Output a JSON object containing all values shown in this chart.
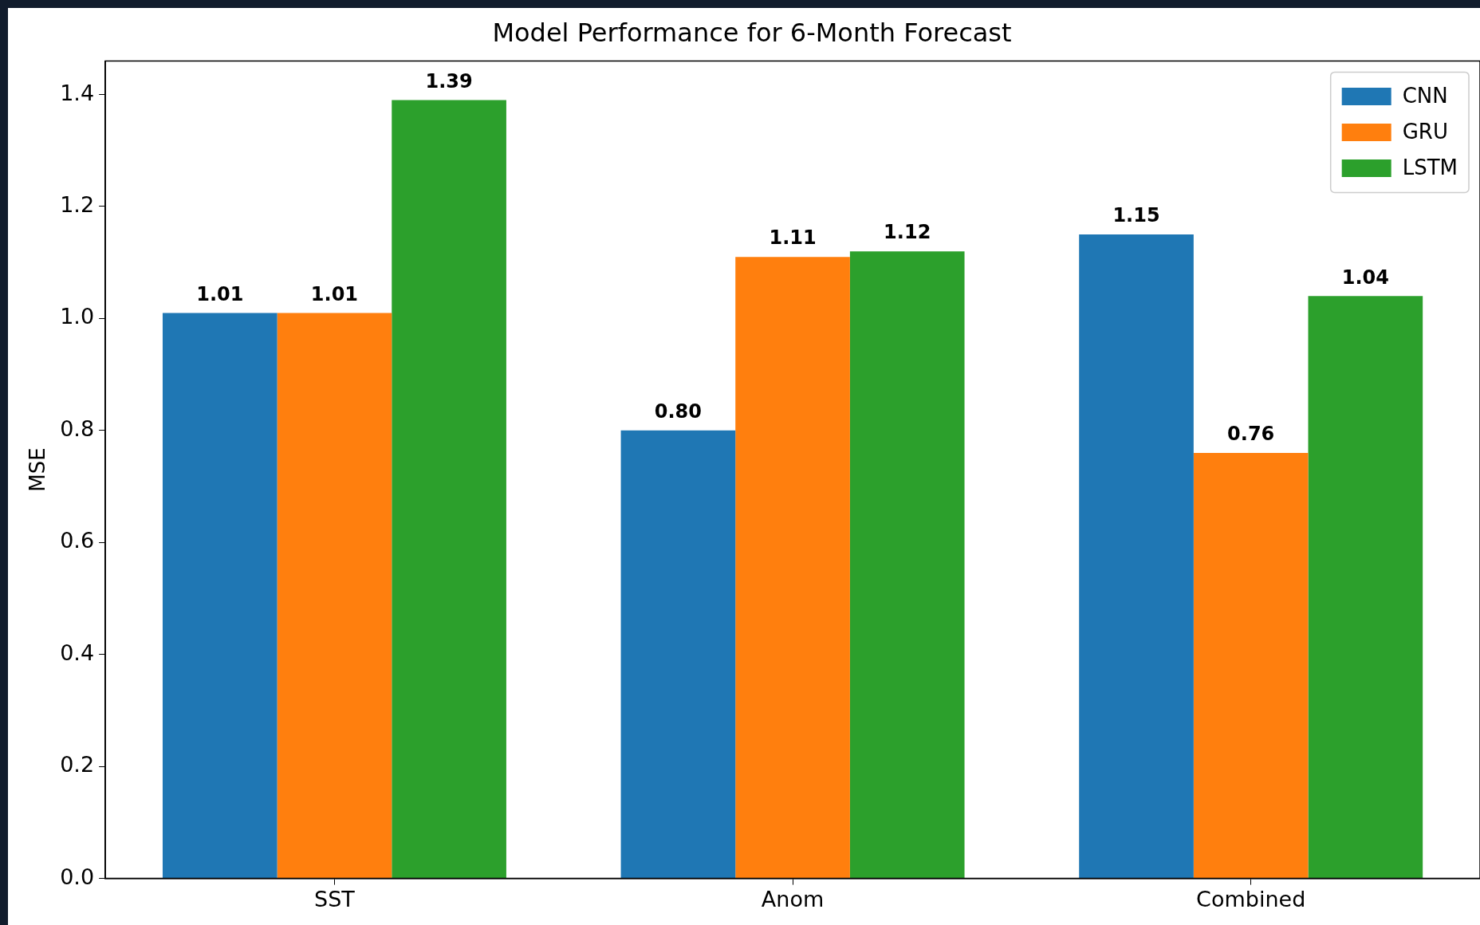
{
  "chart_data": {
    "type": "bar",
    "title": "Model Performance for 6-Month Forecast",
    "ylabel": "MSE",
    "categories": [
      "SST",
      "Anom",
      "Combined"
    ],
    "series": [
      {
        "name": "CNN",
        "color": "#1f77b4",
        "values": [
          1.01,
          0.8,
          1.15
        ],
        "value_labels": [
          "1.01",
          "0.80",
          "1.15"
        ]
      },
      {
        "name": "GRU",
        "color": "#ff7f0e",
        "values": [
          1.01,
          1.11,
          0.76
        ],
        "value_labels": [
          "1.01",
          "1.11",
          "0.76"
        ]
      },
      {
        "name": "LSTM",
        "color": "#2ca02c",
        "values": [
          1.39,
          1.12,
          1.04
        ],
        "value_labels": [
          "1.39",
          "1.12",
          "1.04"
        ]
      }
    ],
    "ylim": [
      0,
      1.46
    ],
    "yticks": [
      {
        "value": 0,
        "label": "0.0"
      },
      {
        "value": 0.2,
        "label": "0.2"
      },
      {
        "value": 0.4,
        "label": "0.4"
      },
      {
        "value": 0.6,
        "label": "0.6"
      },
      {
        "value": 0.8,
        "label": "0.8"
      },
      {
        "value": 1.0,
        "label": "1.0"
      },
      {
        "value": 1.2,
        "label": "1.2"
      },
      {
        "value": 1.4,
        "label": "1.4"
      }
    ],
    "legend": "top right"
  }
}
